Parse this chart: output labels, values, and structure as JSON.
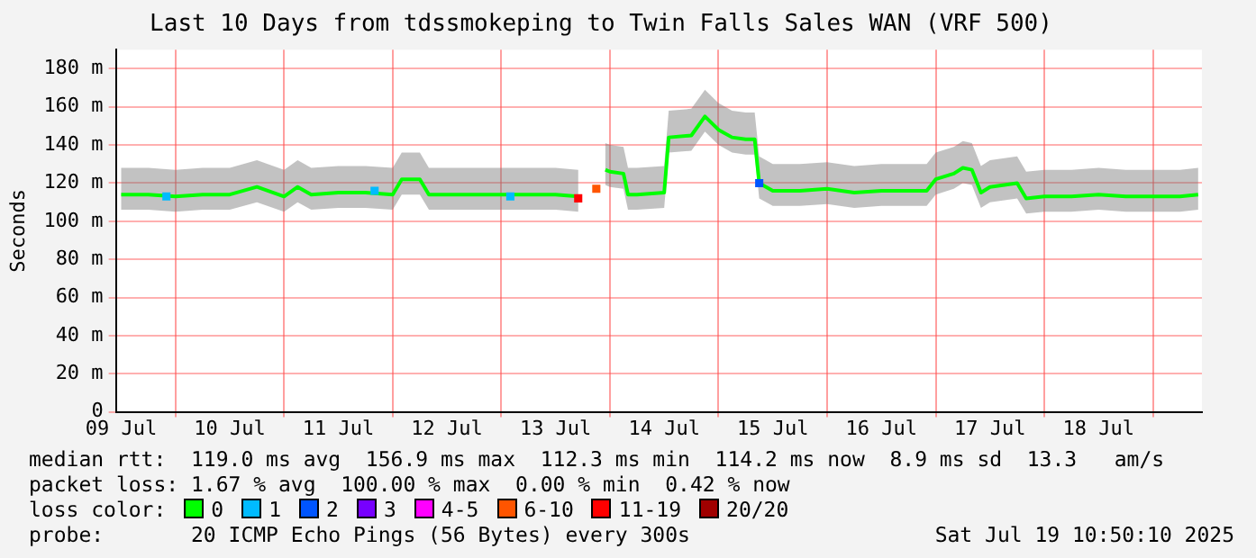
{
  "chart_data": {
    "type": "line",
    "title": "Last 10 Days from tdssmokeping to Twin Falls Sales WAN (VRF 500)",
    "ylabel": "Seconds",
    "x": [
      "2025-07-09T12:00",
      "2025-07-09T18:00",
      "2025-07-10T00:00",
      "2025-07-10T06:00",
      "2025-07-10T12:00",
      "2025-07-10T18:00",
      "2025-07-11T00:00",
      "2025-07-11T03:00",
      "2025-07-11T06:00",
      "2025-07-11T12:00",
      "2025-07-11T18:00",
      "2025-07-12T00:00",
      "2025-07-12T02:00",
      "2025-07-12T06:00",
      "2025-07-12T08:00",
      "2025-07-12T12:00",
      "2025-07-12T18:00",
      "2025-07-13T00:00",
      "2025-07-13T06:00",
      "2025-07-13T12:00",
      "2025-07-13T17:00",
      "2025-07-13T20:00",
      "2025-07-13T23:00",
      "2025-07-14T00:00",
      "2025-07-14T03:00",
      "2025-07-14T04:00",
      "2025-07-14T06:00",
      "2025-07-14T12:00",
      "2025-07-14T13:00",
      "2025-07-14T18:00",
      "2025-07-14T21:00",
      "2025-07-15T00:00",
      "2025-07-15T03:00",
      "2025-07-15T06:00",
      "2025-07-15T08:00",
      "2025-07-15T09:00",
      "2025-07-15T12:00",
      "2025-07-15T18:00",
      "2025-07-16T00:00",
      "2025-07-16T06:00",
      "2025-07-16T12:00",
      "2025-07-16T18:00",
      "2025-07-16T22:00",
      "2025-07-17T00:00",
      "2025-07-17T04:00",
      "2025-07-17T06:00",
      "2025-07-17T08:00",
      "2025-07-17T10:00",
      "2025-07-17T12:00",
      "2025-07-17T18:00",
      "2025-07-17T20:00",
      "2025-07-18T00:00",
      "2025-07-18T06:00",
      "2025-07-18T12:00",
      "2025-07-18T18:00",
      "2025-07-19T00:00",
      "2025-07-19T06:00",
      "2025-07-19T10:00"
    ],
    "series": [
      {
        "name": "0",
        "color": "#00ff00",
        "values": [
          114,
          114,
          113,
          114,
          114,
          118,
          113,
          118,
          114,
          115,
          115,
          114,
          122,
          122,
          114,
          114,
          114,
          114,
          114,
          114,
          113,
          null,
          127,
          126,
          125,
          114,
          114,
          115,
          144,
          145,
          155,
          148,
          144,
          143,
          143,
          120,
          116,
          116,
          117,
          115,
          116,
          116,
          116,
          122,
          125,
          128,
          127,
          115,
          118,
          120,
          112,
          113,
          113,
          114,
          113,
          113,
          113,
          114
        ],
        "lower": [
          106,
          106,
          105,
          106,
          106,
          110,
          105,
          110,
          106,
          107,
          107,
          106,
          114,
          114,
          106,
          106,
          106,
          106,
          106,
          106,
          105,
          null,
          119,
          118,
          117,
          106,
          106,
          107,
          136,
          137,
          147,
          140,
          136,
          135,
          135,
          112,
          108,
          108,
          109,
          107,
          108,
          108,
          108,
          114,
          117,
          120,
          119,
          107,
          110,
          112,
          104,
          105,
          105,
          106,
          105,
          105,
          105,
          106
        ],
        "upper": [
          128,
          128,
          127,
          128,
          128,
          132,
          127,
          132,
          128,
          129,
          129,
          128,
          136,
          136,
          128,
          128,
          128,
          128,
          128,
          128,
          127,
          null,
          141,
          140,
          139,
          128,
          128,
          129,
          158,
          159,
          169,
          162,
          158,
          157,
          157,
          134,
          130,
          130,
          131,
          129,
          130,
          130,
          130,
          136,
          139,
          142,
          141,
          129,
          132,
          134,
          126,
          127,
          127,
          128,
          127,
          127,
          127,
          128
        ]
      },
      {
        "name": "1",
        "color": "#00bbff",
        "type": "scatter",
        "marker": "square",
        "x": [
          "2025-07-09T22:00",
          "2025-07-11T20:00",
          "2025-07-13T02:00"
        ],
        "values": [
          113,
          116,
          113
        ]
      },
      {
        "name": "2",
        "color": "#0055ff",
        "type": "scatter",
        "marker": "square",
        "x": [
          "2025-07-15T09:00"
        ],
        "values": [
          120
        ]
      },
      {
        "name": "3",
        "color": "#7700ff",
        "type": "scatter",
        "marker": "square",
        "values": [
          null,
          null,
          null,
          null,
          null,
          null,
          null,
          null,
          null,
          null,
          null,
          null,
          null,
          null,
          null,
          null,
          null,
          null,
          null,
          null,
          null,
          null,
          null,
          null,
          null,
          null,
          null,
          null,
          null,
          null,
          null,
          null,
          null,
          null,
          null,
          null,
          null,
          null,
          null,
          null,
          null,
          null,
          null,
          null,
          null,
          null,
          null,
          null,
          null,
          null,
          null,
          null,
          null,
          null,
          null,
          null,
          null,
          null
        ]
      },
      {
        "name": "4-5",
        "color": "#ff00ff",
        "type": "scatter",
        "marker": "square",
        "values": [
          null,
          null,
          null,
          null,
          null,
          null,
          null,
          null,
          null,
          null,
          null,
          null,
          null,
          null,
          null,
          null,
          null,
          null,
          null,
          null,
          null,
          null,
          null,
          null,
          null,
          null,
          null,
          null,
          null,
          null,
          null,
          null,
          null,
          null,
          null,
          null,
          null,
          null,
          null,
          null,
          null,
          null,
          null,
          null,
          null,
          null,
          null,
          null,
          null,
          null,
          null,
          null,
          null,
          null,
          null,
          null,
          null,
          null
        ]
      },
      {
        "name": "6-10",
        "color": "#ff5500",
        "type": "scatter",
        "marker": "square",
        "x": [
          "2025-07-13T21:00"
        ],
        "values": [
          117
        ]
      },
      {
        "name": "11-19",
        "color": "#ff0000",
        "type": "scatter",
        "marker": "square",
        "x": [
          "2025-07-13T17:00"
        ],
        "values": [
          112
        ]
      },
      {
        "name": "20/20",
        "color": "#a10000",
        "type": "scatter",
        "marker": "square",
        "values": [
          null,
          null,
          null,
          null,
          null,
          null,
          null,
          null,
          null,
          null,
          null,
          null,
          null,
          null,
          null,
          null,
          null,
          null,
          null,
          null,
          null,
          null,
          null,
          null,
          null,
          null,
          null,
          null,
          null,
          null,
          null,
          null,
          null,
          null,
          null,
          null,
          null,
          null,
          null,
          null,
          null,
          null,
          null,
          null,
          null,
          null,
          null,
          null,
          null,
          null,
          null,
          null,
          null,
          null,
          null,
          null,
          null,
          null
        ]
      }
    ],
    "xlim": [
      "2025-07-09T10:50",
      "2025-07-19T10:50"
    ],
    "xticks": [
      {
        "value": "2025-07-09T12:00",
        "label": "09 Jul"
      },
      {
        "value": "2025-07-10T00:00",
        "label": null
      },
      {
        "value": "2025-07-10T12:00",
        "label": "10 Jul"
      },
      {
        "value": "2025-07-11T00:00",
        "label": null
      },
      {
        "value": "2025-07-11T12:00",
        "label": "11 Jul"
      },
      {
        "value": "2025-07-12T00:00",
        "label": null
      },
      {
        "value": "2025-07-12T12:00",
        "label": "12 Jul"
      },
      {
        "value": "2025-07-13T00:00",
        "label": null
      },
      {
        "value": "2025-07-13T12:00",
        "label": "13 Jul"
      },
      {
        "value": "2025-07-14T00:00",
        "label": null
      },
      {
        "value": "2025-07-14T12:00",
        "label": "14 Jul"
      },
      {
        "value": "2025-07-15T00:00",
        "label": null
      },
      {
        "value": "2025-07-15T12:00",
        "label": "15 Jul"
      },
      {
        "value": "2025-07-16T00:00",
        "label": null
      },
      {
        "value": "2025-07-16T12:00",
        "label": "16 Jul"
      },
      {
        "value": "2025-07-17T00:00",
        "label": null
      },
      {
        "value": "2025-07-17T12:00",
        "label": "17 Jul"
      },
      {
        "value": "2025-07-18T00:00",
        "label": null
      },
      {
        "value": "2025-07-18T12:00",
        "label": "18 Jul"
      },
      {
        "value": "2025-07-19T00:00",
        "label": null
      }
    ],
    "ylim": [
      0,
      190
    ],
    "yticks": [
      0,
      {
        "value": 20,
        "label": "20 m"
      },
      {
        "value": 40,
        "label": "40 m"
      },
      {
        "value": 60,
        "label": "60 m"
      },
      {
        "value": 80,
        "label": "80 m"
      },
      {
        "value": 100,
        "label": "100 m"
      },
      {
        "value": 120,
        "label": "120 m"
      },
      {
        "value": 140,
        "label": "140 m"
      },
      {
        "value": 160,
        "label": "160 m"
      },
      {
        "value": 180,
        "label": "180 m"
      }
    ],
    "grid": true,
    "legend": "bottom",
    "legend_title": "loss color:",
    "marker": "none",
    "line_style": "solid",
    "annotations": [
      "median rtt:  119.0 ms avg  156.9 ms max  112.3 ms min  114.2 ms now  8.9 ms sd  13.3   am/s",
      "packet loss: 1.67 % avg  100.00 % max  0.00 % min  0.42 % now",
      "probe:       20 ICMP Echo Pings (56 Bytes) every 300s",
      "Sat Jul 19 10:50:10 2025"
    ]
  }
}
